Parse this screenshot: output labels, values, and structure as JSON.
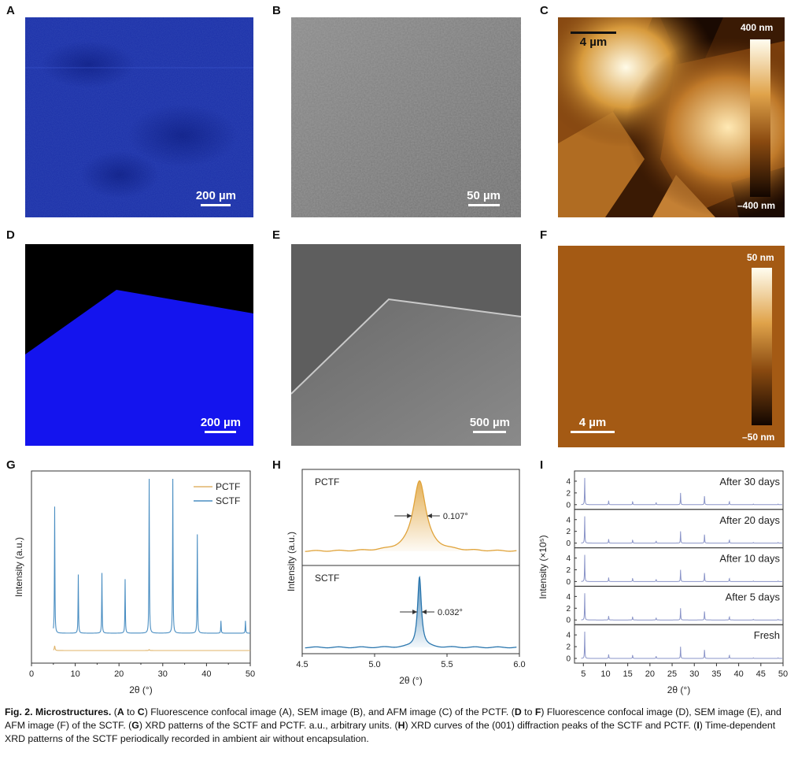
{
  "panels": {
    "A": {
      "label": "A",
      "scale": "200 µm"
    },
    "B": {
      "label": "B",
      "scale": "50 µm"
    },
    "C": {
      "label": "C",
      "scale": "4 µm",
      "cb_max": "400 nm",
      "cb_min": "–400 nm"
    },
    "D": {
      "label": "D",
      "scale": "200 µm"
    },
    "E": {
      "label": "E",
      "scale": "500 µm"
    },
    "F": {
      "label": "F",
      "scale": "4 µm",
      "cb_max": "50 nm",
      "cb_min": "–50 nm"
    },
    "G": {
      "label": "G"
    },
    "H": {
      "label": "H"
    },
    "I": {
      "label": "I"
    }
  },
  "chart_data": [
    {
      "id": "G",
      "type": "line",
      "xlabel": "2θ (°)",
      "ylabel": "Intensity (a.u.)",
      "xlim": [
        0,
        50
      ],
      "xticks": [
        "0",
        "10",
        "20",
        "30",
        "40",
        "50"
      ],
      "legend": [
        "PCTF",
        "SCTF"
      ],
      "legend_position": "top-right",
      "series": [
        {
          "name": "SCTF",
          "color": "#4a8ec2",
          "peaks": [
            [
              5.3,
              0.82
            ],
            [
              10.7,
              0.38
            ],
            [
              16.1,
              0.39
            ],
            [
              21.4,
              0.35
            ],
            [
              26.9,
              1.0
            ],
            [
              32.3,
              1.0
            ],
            [
              37.9,
              0.64
            ],
            [
              43.3,
              0.08
            ],
            [
              48.9,
              0.08
            ]
          ]
        },
        {
          "name": "PCTF",
          "color": "#e0b46a",
          "peaks": [
            [
              5.3,
              0.05
            ],
            [
              26.9,
              0.01
            ]
          ]
        }
      ]
    },
    {
      "id": "H",
      "type": "line",
      "xlabel": "2θ (°)",
      "ylabel": "Intensity (a.u.)",
      "xlim": [
        4.5,
        6.0
      ],
      "xticks": [
        "4.5",
        "5.0",
        "5.5",
        "6.0"
      ],
      "series": [
        {
          "name": "PCTF",
          "color": "#e0a33a",
          "center": 5.31,
          "fwhm_label": "0.107°",
          "fwhm": 0.107
        },
        {
          "name": "SCTF",
          "color": "#2a76ae",
          "center": 5.31,
          "fwhm_label": "0.032°",
          "fwhm": 0.032
        }
      ]
    },
    {
      "id": "I",
      "type": "line",
      "xlabel": "2θ (°)",
      "ylabel": "Intensity (×10⁵)",
      "xlim": [
        3,
        50
      ],
      "xticks": [
        "5",
        "10",
        "15",
        "20",
        "25",
        "30",
        "35",
        "40",
        "45",
        "50"
      ],
      "yticks": [
        "0",
        "2",
        "4"
      ],
      "peaks": [
        [
          5.3,
          4.6
        ],
        [
          10.7,
          0.7
        ],
        [
          16.1,
          0.6
        ],
        [
          21.4,
          0.4
        ],
        [
          26.9,
          2.0
        ],
        [
          32.3,
          1.6
        ],
        [
          37.9,
          0.6
        ],
        [
          43.3,
          0.1
        ],
        [
          48.9,
          0.1
        ]
      ],
      "subplots": [
        "After 30 days",
        "After 20 days",
        "After 10 days",
        "After 5 days",
        "Fresh"
      ]
    }
  ],
  "caption": {
    "title": "Fig. 2. Microstructures.",
    "body": [
      {
        "t": " (",
        "b": false
      },
      {
        "t": "A",
        "b": true
      },
      {
        "t": " to ",
        "b": false
      },
      {
        "t": "C",
        "b": true
      },
      {
        "t": ") Fluorescence confocal image (A), SEM image (B), and AFM image (C) of the PCTF. (",
        "b": false
      },
      {
        "t": "D",
        "b": true
      },
      {
        "t": " to ",
        "b": false
      },
      {
        "t": "F",
        "b": true
      },
      {
        "t": ") Fluorescence confocal image (D), SEM image (E), and AFM image (F) of the SCTF. (",
        "b": false
      },
      {
        "t": "G",
        "b": true
      },
      {
        "t": ") XRD patterns of the SCTF and PCTF. a.u., arbitrary units. (",
        "b": false
      },
      {
        "t": "H",
        "b": true
      },
      {
        "t": ") XRD curves of the (001) diffraction peaks of the SCTF and PCTF. (",
        "b": false
      },
      {
        "t": "I",
        "b": true
      },
      {
        "t": ") Time-dependent XRD patterns of the SCTF periodically recorded in ambient air without encapsulation.",
        "b": false
      }
    ]
  }
}
